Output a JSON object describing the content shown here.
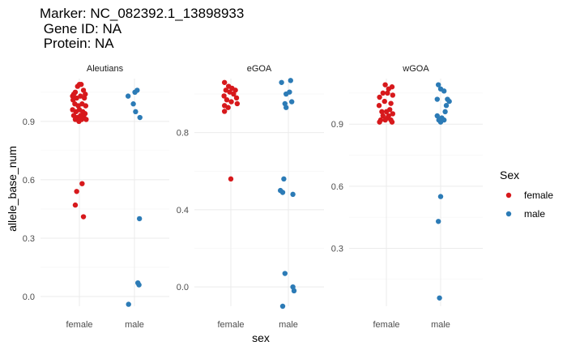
{
  "chart_data": {
    "type": "scatter",
    "title_lines": [
      "Marker: NC_082392.1_13898933",
      " Gene ID: NA",
      " Protein: NA"
    ],
    "xlabel": "sex",
    "ylabel": "allele_base_num",
    "categories": [
      "female",
      "male"
    ],
    "legend": {
      "title": "Sex",
      "position": "right",
      "entries": [
        {
          "name": "female",
          "color": "#d7191c"
        },
        {
          "name": "male",
          "color": "#2c7bb6"
        }
      ]
    },
    "grid": true,
    "panels": [
      {
        "name": "Aleutians",
        "ylim": [
          -0.05,
          1.12
        ],
        "yticks": [
          0.0,
          0.3,
          0.6,
          0.9
        ],
        "yticklabels": [
          "0.0",
          "0.3",
          "0.6",
          "0.9"
        ],
        "points": [
          {
            "sex": "female",
            "x": -0.3,
            "y": 1.03
          },
          {
            "sex": "female",
            "x": -0.25,
            "y": 1.04
          },
          {
            "sex": "female",
            "x": -0.18,
            "y": 1.05
          },
          {
            "sex": "female",
            "x": -0.08,
            "y": 1.08
          },
          {
            "sex": "female",
            "x": 0.0,
            "y": 1.09
          },
          {
            "sex": "female",
            "x": 0.08,
            "y": 1.09
          },
          {
            "sex": "female",
            "x": 0.18,
            "y": 1.06
          },
          {
            "sex": "female",
            "x": 0.26,
            "y": 1.04
          },
          {
            "sex": "female",
            "x": -0.28,
            "y": 1.01
          },
          {
            "sex": "female",
            "x": -0.12,
            "y": 1.02
          },
          {
            "sex": "female",
            "x": 0.05,
            "y": 1.03
          },
          {
            "sex": "female",
            "x": 0.22,
            "y": 1.02
          },
          {
            "sex": "female",
            "x": -0.2,
            "y": 0.99
          },
          {
            "sex": "female",
            "x": -0.05,
            "y": 0.98
          },
          {
            "sex": "female",
            "x": 0.12,
            "y": 0.99
          },
          {
            "sex": "female",
            "x": 0.28,
            "y": 0.98
          },
          {
            "sex": "female",
            "x": -0.3,
            "y": 0.96
          },
          {
            "sex": "female",
            "x": -0.15,
            "y": 0.95
          },
          {
            "sex": "female",
            "x": 0.0,
            "y": 0.96
          },
          {
            "sex": "female",
            "x": 0.15,
            "y": 0.95
          },
          {
            "sex": "female",
            "x": -0.25,
            "y": 0.93
          },
          {
            "sex": "female",
            "x": -0.1,
            "y": 0.92
          },
          {
            "sex": "female",
            "x": 0.05,
            "y": 0.93
          },
          {
            "sex": "female",
            "x": 0.2,
            "y": 0.92
          },
          {
            "sex": "female",
            "x": 0.3,
            "y": 0.91
          },
          {
            "sex": "female",
            "x": -0.18,
            "y": 0.91
          },
          {
            "sex": "female",
            "x": -0.02,
            "y": 0.9
          },
          {
            "sex": "female",
            "x": 0.1,
            "y": 0.91
          },
          {
            "sex": "female",
            "x": 0.25,
            "y": 0.94
          },
          {
            "sex": "female",
            "x": 0.12,
            "y": 0.58
          },
          {
            "sex": "female",
            "x": -0.12,
            "y": 0.54
          },
          {
            "sex": "female",
            "x": -0.18,
            "y": 0.47
          },
          {
            "sex": "female",
            "x": 0.18,
            "y": 0.41
          },
          {
            "sex": "male",
            "x": -0.28,
            "y": 1.03
          },
          {
            "sex": "male",
            "x": 0.02,
            "y": 1.05
          },
          {
            "sex": "male",
            "x": 0.12,
            "y": 1.06
          },
          {
            "sex": "male",
            "x": -0.05,
            "y": 0.99
          },
          {
            "sex": "male",
            "x": 0.05,
            "y": 0.95
          },
          {
            "sex": "male",
            "x": 0.24,
            "y": 0.92
          },
          {
            "sex": "male",
            "x": 0.22,
            "y": 0.4
          },
          {
            "sex": "male",
            "x": 0.15,
            "y": 0.07
          },
          {
            "sex": "male",
            "x": 0.2,
            "y": 0.06
          },
          {
            "sex": "male",
            "x": -0.26,
            "y": -0.04
          }
        ]
      },
      {
        "name": "eGOA",
        "ylim": [
          -0.1,
          1.08
        ],
        "yticks": [
          0.0,
          0.4,
          0.8
        ],
        "yticklabels": [
          "0.0",
          "0.4",
          "0.8"
        ],
        "points": [
          {
            "sex": "female",
            "x": -0.28,
            "y": 1.06
          },
          {
            "sex": "female",
            "x": -0.1,
            "y": 1.04
          },
          {
            "sex": "female",
            "x": -0.22,
            "y": 1.02
          },
          {
            "sex": "female",
            "x": 0.05,
            "y": 1.03
          },
          {
            "sex": "female",
            "x": -0.3,
            "y": 0.99
          },
          {
            "sex": "female",
            "x": 0.2,
            "y": 1.02
          },
          {
            "sex": "female",
            "x": -0.05,
            "y": 1.01
          },
          {
            "sex": "female",
            "x": 0.12,
            "y": 1.0
          },
          {
            "sex": "female",
            "x": -0.18,
            "y": 0.97
          },
          {
            "sex": "female",
            "x": 0.25,
            "y": 0.98
          },
          {
            "sex": "female",
            "x": 0.28,
            "y": 0.95
          },
          {
            "sex": "female",
            "x": -0.28,
            "y": 0.94
          },
          {
            "sex": "female",
            "x": 0.02,
            "y": 0.96
          },
          {
            "sex": "female",
            "x": -0.12,
            "y": 0.93
          },
          {
            "sex": "female",
            "x": -0.28,
            "y": 0.91
          },
          {
            "sex": "female",
            "x": 0.0,
            "y": 0.56
          },
          {
            "sex": "male",
            "x": -0.3,
            "y": 1.06
          },
          {
            "sex": "male",
            "x": 0.1,
            "y": 1.07
          },
          {
            "sex": "male",
            "x": -0.1,
            "y": 1.0
          },
          {
            "sex": "male",
            "x": 0.05,
            "y": 1.01
          },
          {
            "sex": "male",
            "x": -0.15,
            "y": 0.95
          },
          {
            "sex": "male",
            "x": 0.15,
            "y": 0.96
          },
          {
            "sex": "male",
            "x": -0.1,
            "y": 0.93
          },
          {
            "sex": "male",
            "x": -0.2,
            "y": 0.56
          },
          {
            "sex": "male",
            "x": -0.35,
            "y": 0.5
          },
          {
            "sex": "male",
            "x": -0.25,
            "y": 0.49
          },
          {
            "sex": "male",
            "x": 0.2,
            "y": 0.48
          },
          {
            "sex": "male",
            "x": -0.15,
            "y": 0.07
          },
          {
            "sex": "male",
            "x": 0.2,
            "y": 0.0
          },
          {
            "sex": "male",
            "x": 0.25,
            "y": -0.02
          },
          {
            "sex": "male",
            "x": -0.25,
            "y": -0.1
          }
        ]
      },
      {
        "name": "wGOA",
        "ylim": [
          0.02,
          1.12
        ],
        "yticks": [
          0.3,
          0.6,
          0.9
        ],
        "yticklabels": [
          "0.3",
          "0.6",
          "0.9"
        ],
        "points": [
          {
            "sex": "female",
            "x": -0.05,
            "y": 1.09
          },
          {
            "sex": "female",
            "x": 0.1,
            "y": 1.07
          },
          {
            "sex": "female",
            "x": 0.25,
            "y": 1.08
          },
          {
            "sex": "female",
            "x": -0.15,
            "y": 1.05
          },
          {
            "sex": "female",
            "x": 0.28,
            "y": 1.04
          },
          {
            "sex": "female",
            "x": -0.3,
            "y": 1.03
          },
          {
            "sex": "female",
            "x": 0.05,
            "y": 1.05
          },
          {
            "sex": "female",
            "x": -0.08,
            "y": 1.01
          },
          {
            "sex": "female",
            "x": 0.2,
            "y": 1.0
          },
          {
            "sex": "female",
            "x": -0.32,
            "y": 0.99
          },
          {
            "sex": "female",
            "x": 0.15,
            "y": 0.97
          },
          {
            "sex": "female",
            "x": -0.2,
            "y": 0.96
          },
          {
            "sex": "female",
            "x": 0.0,
            "y": 0.96
          },
          {
            "sex": "female",
            "x": 0.28,
            "y": 0.95
          },
          {
            "sex": "female",
            "x": -0.15,
            "y": 0.94
          },
          {
            "sex": "female",
            "x": 0.1,
            "y": 0.94
          },
          {
            "sex": "female",
            "x": -0.25,
            "y": 0.92
          },
          {
            "sex": "female",
            "x": -0.05,
            "y": 0.92
          },
          {
            "sex": "female",
            "x": 0.2,
            "y": 0.92
          },
          {
            "sex": "female",
            "x": -0.3,
            "y": 0.91
          },
          {
            "sex": "female",
            "x": 0.25,
            "y": 0.91
          },
          {
            "sex": "female",
            "x": 0.05,
            "y": 0.93
          },
          {
            "sex": "male",
            "x": -0.1,
            "y": 1.09
          },
          {
            "sex": "male",
            "x": 0.0,
            "y": 1.07
          },
          {
            "sex": "male",
            "x": 0.15,
            "y": 1.06
          },
          {
            "sex": "male",
            "x": -0.15,
            "y": 1.02
          },
          {
            "sex": "male",
            "x": 0.3,
            "y": 1.02
          },
          {
            "sex": "male",
            "x": 0.38,
            "y": 1.01
          },
          {
            "sex": "male",
            "x": 0.25,
            "y": 0.99
          },
          {
            "sex": "male",
            "x": 0.2,
            "y": 0.96
          },
          {
            "sex": "male",
            "x": -0.15,
            "y": 0.94
          },
          {
            "sex": "male",
            "x": 0.05,
            "y": 0.93
          },
          {
            "sex": "male",
            "x": -0.08,
            "y": 0.92
          },
          {
            "sex": "male",
            "x": 0.15,
            "y": 0.92
          },
          {
            "sex": "male",
            "x": 0.0,
            "y": 0.91
          },
          {
            "sex": "male",
            "x": 0.0,
            "y": 0.55
          },
          {
            "sex": "male",
            "x": -0.1,
            "y": 0.43
          },
          {
            "sex": "male",
            "x": -0.05,
            "y": 0.06
          }
        ]
      }
    ]
  }
}
